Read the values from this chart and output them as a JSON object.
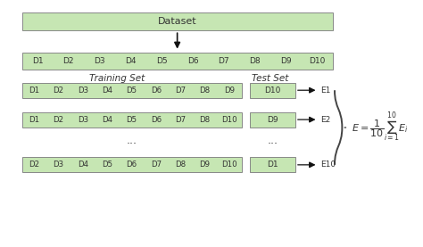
{
  "bg_color": "#ffffff",
  "box_color": "#c6e6b3",
  "box_edge_color": "#888888",
  "text_color": "#333333",
  "arrow_color": "#111111",
  "dataset_label": "Dataset",
  "dataset_row": [
    "D1",
    "D2",
    "D3",
    "D4",
    "D5",
    "D6",
    "D7",
    "D8",
    "D9",
    "D10"
  ],
  "training_label": "Training Set",
  "test_label": "Test Set",
  "rows": [
    {
      "train": [
        "D1",
        "D2",
        "D3",
        "D4",
        "D5",
        "D6",
        "D7",
        "D8",
        "D9"
      ],
      "test": "D10",
      "error": "E1"
    },
    {
      "train": [
        "D1",
        "D2",
        "D3",
        "D4",
        "D5",
        "D6",
        "D7",
        "D8",
        "D10"
      ],
      "test": "D9",
      "error": "E2"
    },
    {
      "train": [
        "D2",
        "D3",
        "D4",
        "D5",
        "D6",
        "D7",
        "D8",
        "D9",
        "D10"
      ],
      "test": "D1",
      "error": "E10"
    }
  ],
  "dots_train": "...",
  "dots_test": "...",
  "formula": "$E = \\dfrac{1}{10}\\sum_{i=1}^{10} E_i$"
}
